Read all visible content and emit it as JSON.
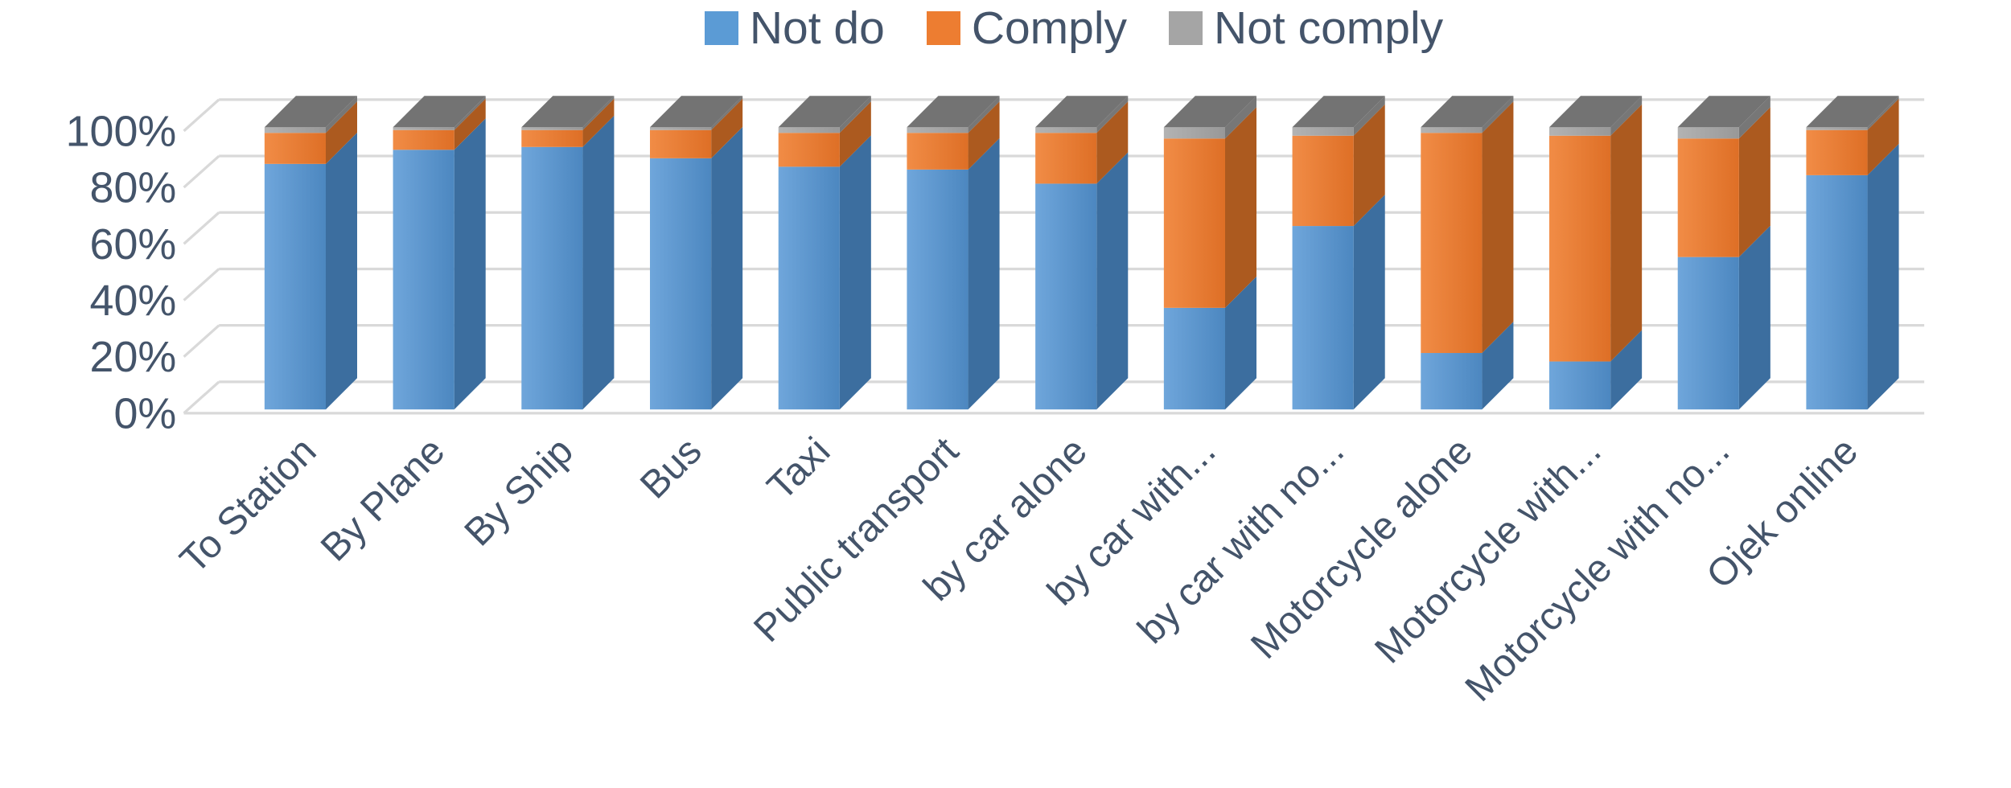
{
  "legend": {
    "items": [
      {
        "label": "Not do",
        "series_index": 0
      },
      {
        "label": "Comply",
        "series_index": 1
      },
      {
        "label": "Not comply",
        "series_index": 2
      }
    ]
  },
  "chart_data": {
    "type": "bar",
    "variant": "3d-100%-stacked-column",
    "title": "",
    "xlabel": "",
    "ylabel": "",
    "categories": [
      "To Station",
      "By Plane",
      "By Ship",
      "Bus",
      "Taxi",
      "Public transport",
      "by car alone",
      "by car with...",
      "by car with no...",
      "Motorcycle alone",
      "Motorcycle with...",
      "Motorcycle with no...",
      "Ojek online"
    ],
    "series": [
      {
        "name": "Not do",
        "color": "#5B9BD5",
        "side_color": "#3C6E9F",
        "top_color": "#35638f",
        "values": [
          87,
          92,
          93,
          89,
          86,
          85,
          80,
          36,
          65,
          20,
          17,
          54,
          83
        ]
      },
      {
        "name": "Comply",
        "color": "#ED7D31",
        "side_color": "#AC5A1F",
        "top_color": "#9c521c",
        "values": [
          11,
          7,
          6,
          10,
          12,
          13,
          18,
          60,
          32,
          78,
          80,
          42,
          16
        ]
      },
      {
        "name": "Not comply",
        "color": "#A5A5A5",
        "side_color": "#777777",
        "top_color": "#737373",
        "values": [
          2,
          1,
          1,
          1,
          2,
          2,
          2,
          4,
          3,
          2,
          3,
          4,
          1
        ]
      }
    ],
    "yticks": [
      "0%",
      "20%",
      "40%",
      "60%",
      "80%",
      "100%"
    ],
    "ylim": [
      0,
      100
    ],
    "grid": true,
    "legend_position": "top",
    "text_color": "#44546A",
    "grid_color": "#D9D9D9"
  }
}
